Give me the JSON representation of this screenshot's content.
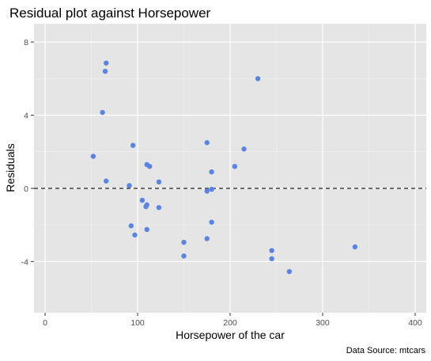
{
  "chart_data": {
    "type": "scatter",
    "title": "Residual plot against Horsepower",
    "xlabel": "Horsepower of the car",
    "ylabel": "Residuals",
    "caption": "Data Source: mtcars",
    "xlim": [
      -12,
      412
    ],
    "ylim": [
      -6.8,
      9.0
    ],
    "x_ticks": [
      0,
      100,
      200,
      300,
      400
    ],
    "x_tick_labels": [
      "0",
      "100",
      "200",
      "300",
      "400"
    ],
    "y_ticks": [
      -4,
      0,
      4,
      8
    ],
    "y_tick_labels": [
      "-4",
      "0",
      "4",
      "8"
    ],
    "reference_line": {
      "y": 0,
      "style": "dashed"
    },
    "grid": true,
    "point_color": "#5b84e0",
    "panel_color": "#e5e5e5",
    "points": [
      {
        "x": 52,
        "y": 1.75
      },
      {
        "x": 62,
        "y": 4.15
      },
      {
        "x": 65,
        "y": 6.4
      },
      {
        "x": 66,
        "y": 6.85
      },
      {
        "x": 66,
        "y": 0.4
      },
      {
        "x": 91,
        "y": 0.15
      },
      {
        "x": 93,
        "y": -2.05
      },
      {
        "x": 95,
        "y": 2.35
      },
      {
        "x": 97,
        "y": -2.55
      },
      {
        "x": 105,
        "y": -0.65
      },
      {
        "x": 109,
        "y": -1.0
      },
      {
        "x": 110,
        "y": -0.9
      },
      {
        "x": 110,
        "y": -2.25
      },
      {
        "x": 110,
        "y": 1.3
      },
      {
        "x": 113,
        "y": 1.2
      },
      {
        "x": 123,
        "y": 0.35
      },
      {
        "x": 123,
        "y": -1.05
      },
      {
        "x": 150,
        "y": -2.95
      },
      {
        "x": 150,
        "y": -3.7
      },
      {
        "x": 175,
        "y": 2.5
      },
      {
        "x": 175,
        "y": -0.15
      },
      {
        "x": 175,
        "y": -2.75
      },
      {
        "x": 180,
        "y": -0.05
      },
      {
        "x": 180,
        "y": -1.85
      },
      {
        "x": 180,
        "y": 0.9
      },
      {
        "x": 205,
        "y": 1.2
      },
      {
        "x": 215,
        "y": 2.15
      },
      {
        "x": 230,
        "y": 6.0
      },
      {
        "x": 245,
        "y": -3.4
      },
      {
        "x": 245,
        "y": -3.85
      },
      {
        "x": 264,
        "y": -4.55
      },
      {
        "x": 335,
        "y": -3.2
      }
    ]
  }
}
